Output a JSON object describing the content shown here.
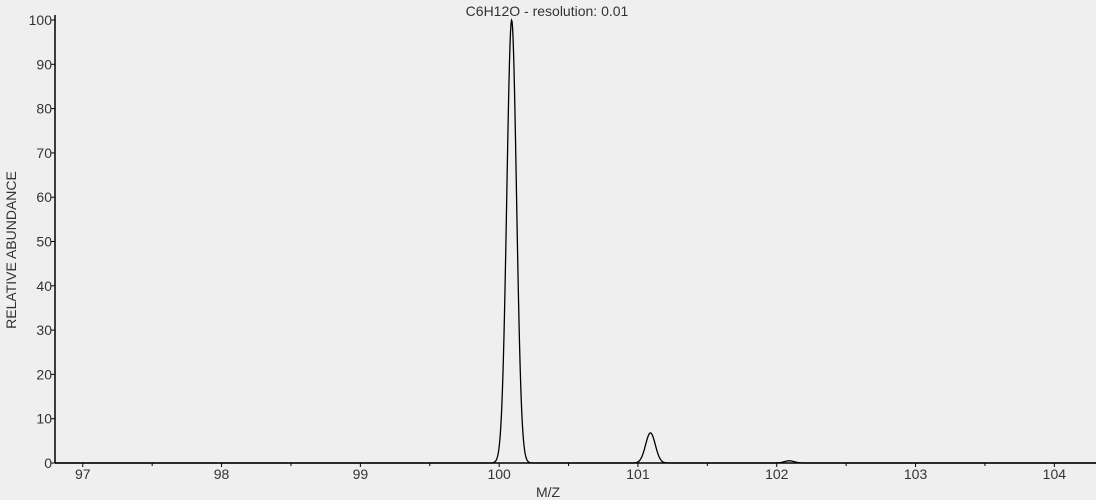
{
  "chart_data": {
    "type": "line",
    "title": "C6H12O - resolution: 0.01",
    "xlabel": "M/Z",
    "ylabel": "RELATIVE ABUNDANCE",
    "xlim": [
      96.8,
      104.3
    ],
    "ylim": [
      0,
      100
    ],
    "xticks": [
      97,
      98,
      99,
      100,
      101,
      102,
      103,
      104
    ],
    "yticks": [
      0,
      10,
      20,
      30,
      40,
      50,
      60,
      70,
      80,
      90,
      100
    ],
    "grid": false,
    "line_color": "#000000",
    "peaks": [
      {
        "mz": 100.09,
        "abundance": 100
      },
      {
        "mz": 101.09,
        "abundance": 6.8
      },
      {
        "mz": 102.09,
        "abundance": 0.5
      }
    ],
    "peak_sigma": 0.035
  }
}
